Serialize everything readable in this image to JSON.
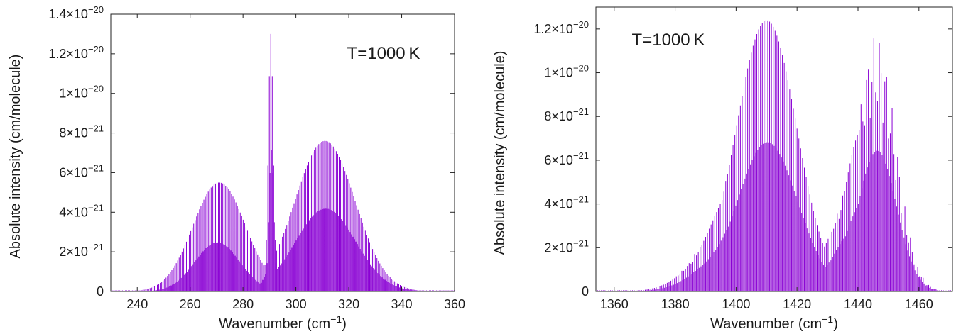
{
  "chart_data": [
    {
      "type": "line",
      "style": "dense rovibrational stick spectrum",
      "color": "#8A00D4",
      "annotation": "T=1000 K",
      "annotation_position": "top-right",
      "xlabel_base": "Wavenumber (cm",
      "xlabel_sup": "−1",
      "xlabel_tail": ")",
      "ylabel": "Absolute intensity (cm/molecule)",
      "xlim": [
        230,
        360
      ],
      "ylim": [
        0,
        1.4e-20
      ],
      "xticks": [
        240,
        260,
        280,
        300,
        320,
        340,
        360
      ],
      "yticks": [
        {
          "value": 0,
          "mantissa": "0",
          "exp": ""
        },
        {
          "value": 2e-21,
          "mantissa": "2×10",
          "exp": "−21"
        },
        {
          "value": 4e-21,
          "mantissa": "4×10",
          "exp": "−21"
        },
        {
          "value": 6e-21,
          "mantissa": "6×10",
          "exp": "−21"
        },
        {
          "value": 8e-21,
          "mantissa": "8×10",
          "exp": "−21"
        },
        {
          "value": 1e-20,
          "mantissa": "1×10",
          "exp": "−20"
        },
        {
          "value": 1.2e-20,
          "mantissa": "1.2×10",
          "exp": "−20"
        },
        {
          "value": 1.4e-20,
          "mantissa": "1.4×10",
          "exp": "−20"
        }
      ],
      "line_spacing": 0.55,
      "bands": [
        {
          "center": 271,
          "peak": 5.5e-21,
          "width": 14
        },
        {
          "center": 270,
          "peak": 4.5e-21,
          "width": 12
        },
        {
          "center": 268,
          "peak": 2.9e-21,
          "width": 11
        },
        {
          "center": 266,
          "peak": 1.8e-21,
          "width": 10
        },
        {
          "center": 290.5,
          "peak": 1.3e-20,
          "width": 1.3
        },
        {
          "center": 290,
          "peak": 2e-21,
          "width": 3.5
        },
        {
          "center": 311,
          "peak": 7.6e-21,
          "width": 16
        },
        {
          "center": 311,
          "peak": 4.4e-21,
          "width": 14
        },
        {
          "center": 309,
          "peak": 2.9e-21,
          "width": 12
        },
        {
          "center": 306,
          "peak": 1.8e-21,
          "width": 10
        }
      ]
    },
    {
      "type": "line",
      "style": "dense rovibrational stick spectrum",
      "color": "#8A00D4",
      "annotation": "T=1000 K",
      "annotation_position": "top-left",
      "xlabel_base": "Wavenumber (cm",
      "xlabel_sup": "−1",
      "xlabel_tail": ")",
      "ylabel": "Absolute intensity (cm/molecule)",
      "xlim": [
        1354,
        1471
      ],
      "ylim": [
        0,
        1.3e-20
      ],
      "xticks": [
        1360,
        1380,
        1400,
        1420,
        1440,
        1460
      ],
      "yticks": [
        {
          "value": 0,
          "mantissa": "0",
          "exp": ""
        },
        {
          "value": 2e-21,
          "mantissa": "2×10",
          "exp": "−21"
        },
        {
          "value": 4e-21,
          "mantissa": "4×10",
          "exp": "−21"
        },
        {
          "value": 6e-21,
          "mantissa": "6×10",
          "exp": "−21"
        },
        {
          "value": 8e-21,
          "mantissa": "8×10",
          "exp": "−21"
        },
        {
          "value": 1e-20,
          "mantissa": "1×10",
          "exp": "−20"
        },
        {
          "value": 1.2e-20,
          "mantissa": "1.2×10",
          "exp": "−20"
        }
      ],
      "line_spacing": 0.6,
      "bands": [
        {
          "center": 1410,
          "peak": 1.24e-20,
          "width": 14
        },
        {
          "center": 1406,
          "peak": 8e-21,
          "width": 14
        },
        {
          "center": 1402,
          "peak": 5.2e-21,
          "width": 14
        },
        {
          "center": 1398,
          "peak": 3.4e-21,
          "width": 14
        },
        {
          "center": 1396,
          "peak": 2.3e-21,
          "width": 14
        },
        {
          "center": 1446,
          "peak": 1.17e-20,
          "width": 9
        },
        {
          "center": 1442,
          "peak": 7.6e-21,
          "width": 9
        },
        {
          "center": 1438,
          "peak": 4.9e-21,
          "width": 9
        },
        {
          "center": 1435,
          "peak": 3.2e-21,
          "width": 9
        },
        {
          "center": 1433,
          "peak": 2.1e-21,
          "width": 9
        }
      ]
    }
  ]
}
